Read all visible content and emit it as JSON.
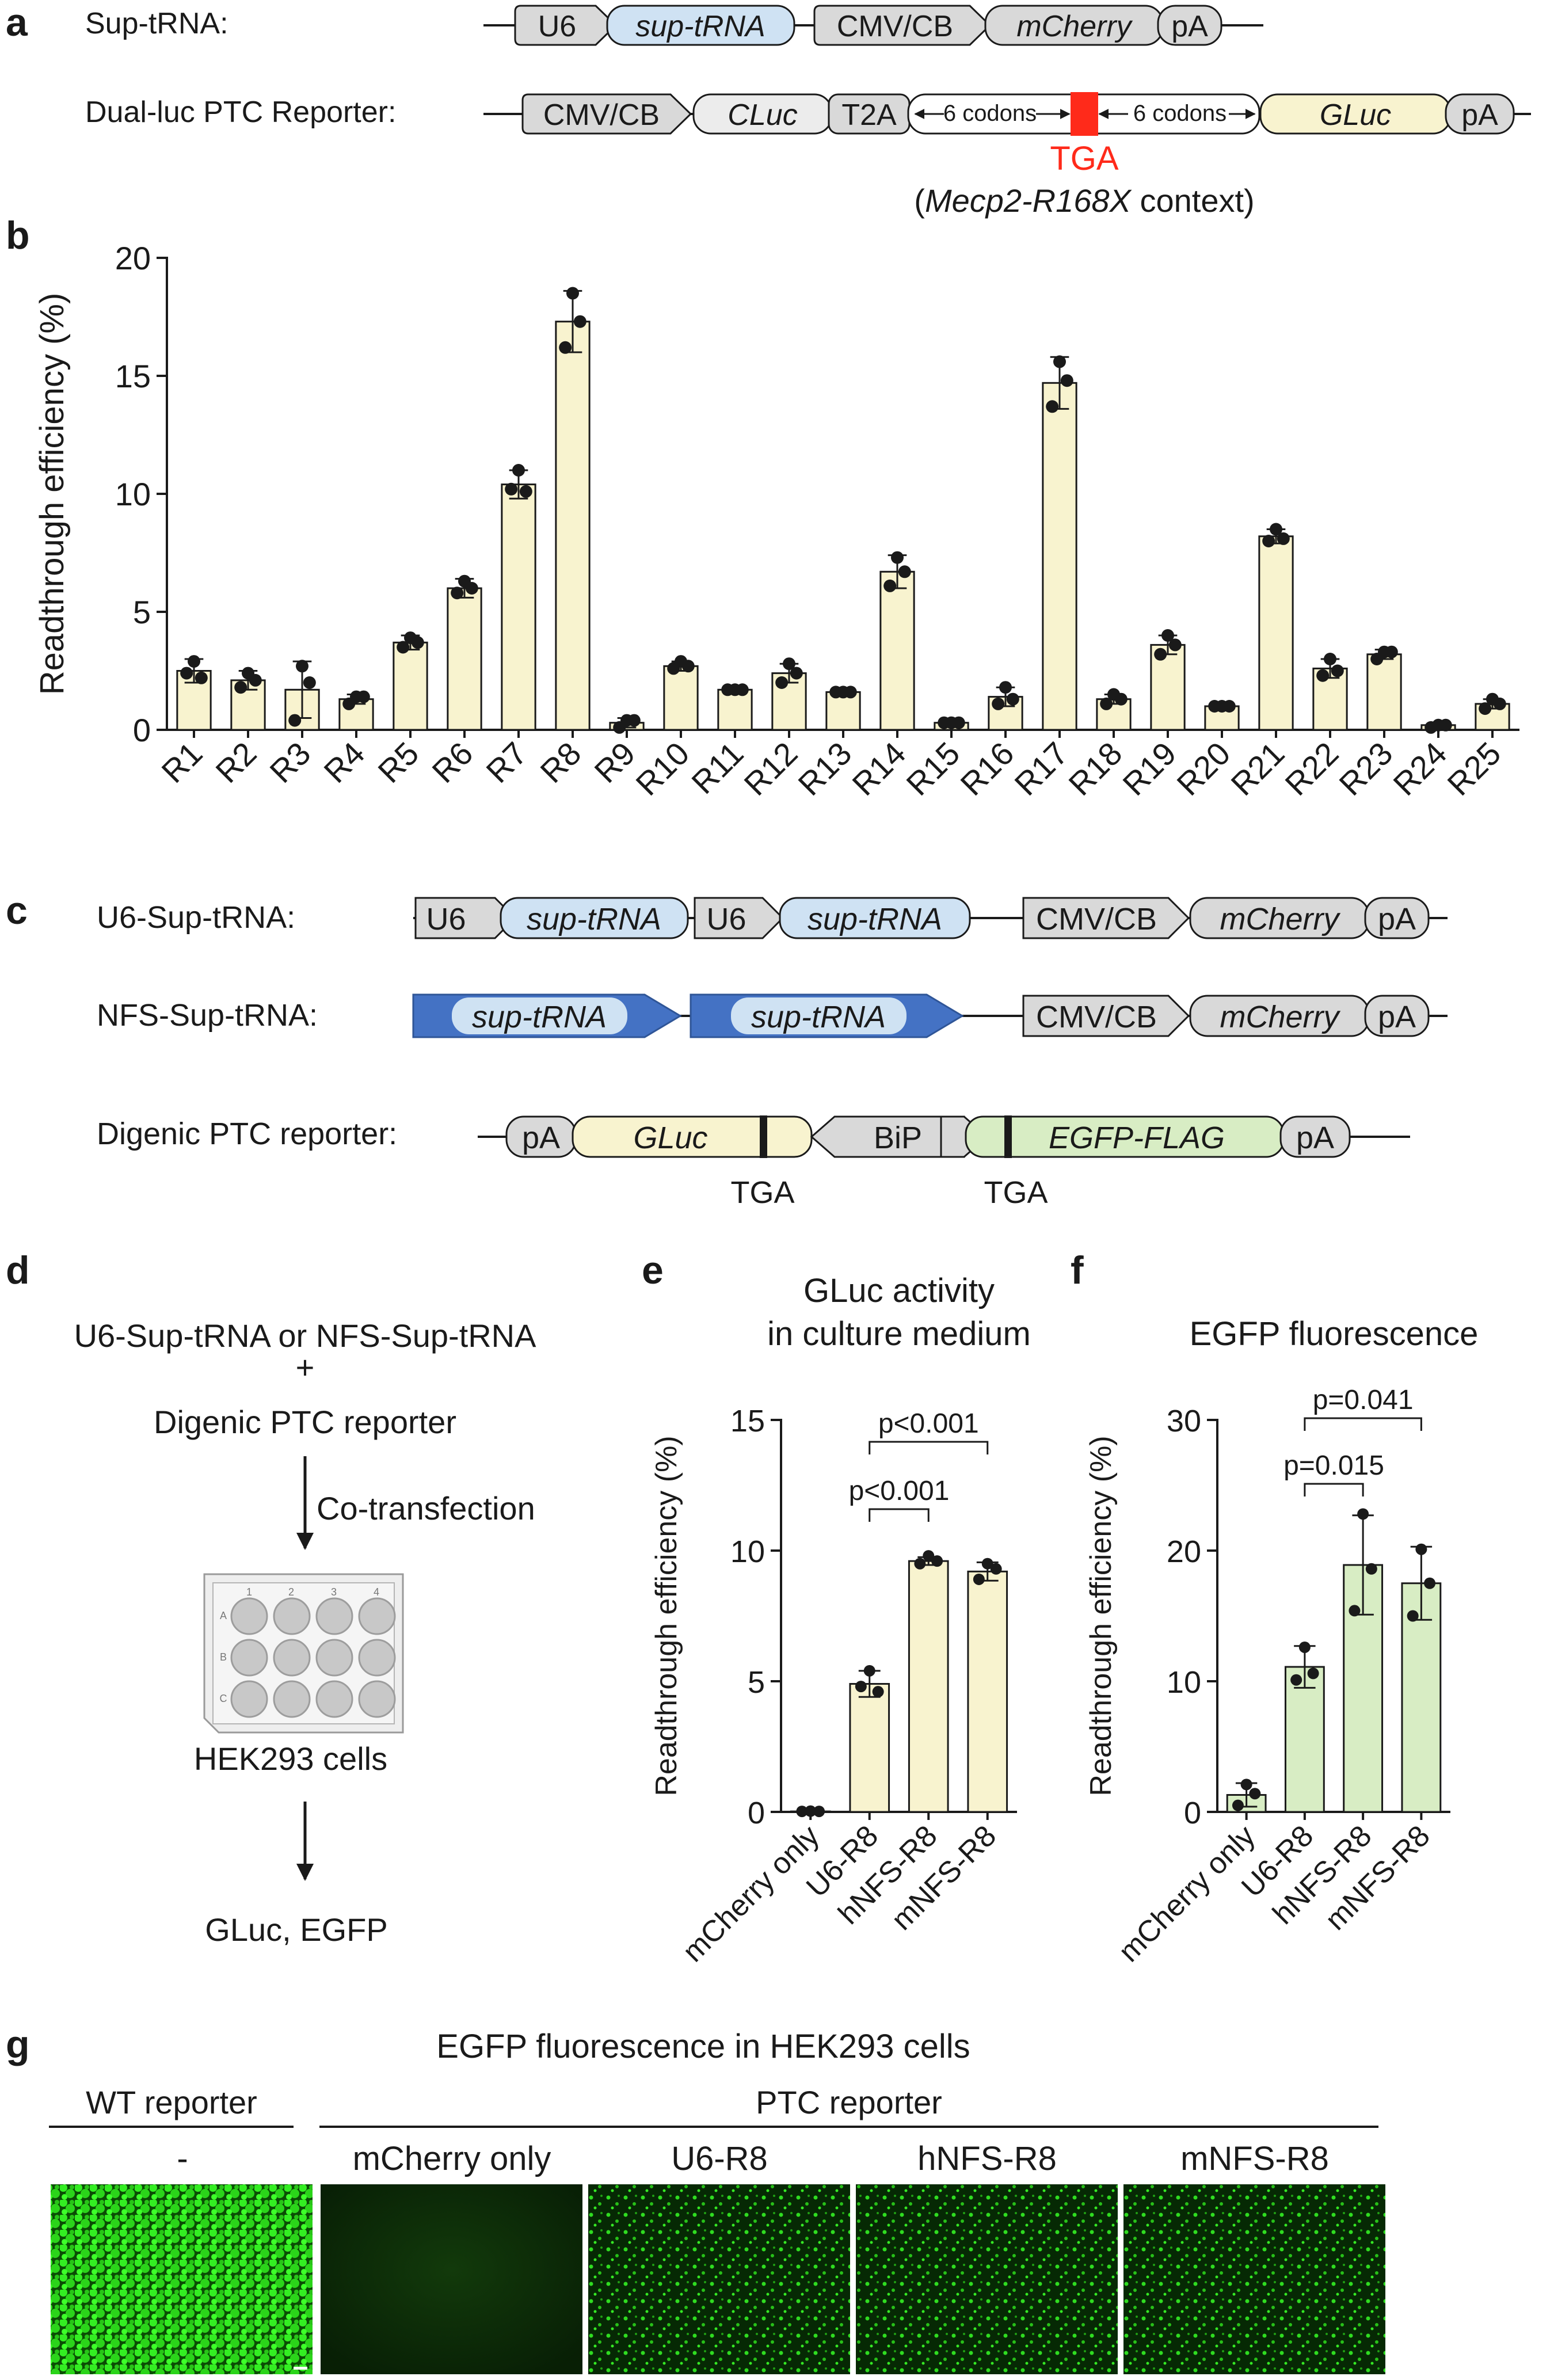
{
  "panel_letters": {
    "a": "a",
    "b": "b",
    "c": "c",
    "d": "d",
    "e": "e",
    "f": "f",
    "g": "g"
  },
  "panel_a": {
    "sup_trna_label": "Sup-tRNA:",
    "reporter_label": "Dual-luc PTC Reporter:",
    "sup_elements": [
      "U6",
      "sup-tRNA",
      "CMV/CB",
      "mCherry",
      "pA"
    ],
    "rep_elements": [
      "CMV/CB",
      "CLuc",
      "T2A",
      "6 codons",
      "6 codons",
      "GLuc",
      "pA"
    ],
    "stop_codon": "TGA",
    "context_open": "(",
    "context_gene": "Mecp2-R168X",
    "context_close": " context)"
  },
  "panel_c": {
    "u6_label": "U6-Sup-tRNA:",
    "nfs_label": "NFS-Sup-tRNA:",
    "digenic_label": "Digenic PTC reporter:",
    "u6_elements": [
      "U6",
      "sup-tRNA",
      "U6",
      "sup-tRNA",
      "CMV/CB",
      "mCherry",
      "pA"
    ],
    "nfs_elements": [
      "sup-tRNA",
      "sup-tRNA",
      "CMV/CB",
      "mCherry",
      "pA"
    ],
    "digenic_elements": [
      "pA",
      "GLuc",
      "BiP",
      "EGFP-FLAG",
      "pA"
    ],
    "tga1": "TGA",
    "tga2": "TGA"
  },
  "panel_d": {
    "line1": "U6-Sup-tRNA or NFS-Sup-tRNA",
    "plus": "+",
    "line2": "Digenic PTC reporter",
    "step": "Co-transfection",
    "plate_cols": [
      "1",
      "2",
      "3",
      "4"
    ],
    "plate_rows": [
      "A",
      "B",
      "C"
    ],
    "cells": "HEK293 cells",
    "readout": "GLuc, EGFP"
  },
  "chart_data": [
    {
      "id": "b",
      "type": "bar",
      "title": "",
      "xlabel": "",
      "ylabel": "Readthrough efficiency (%)",
      "ylim": [
        0,
        20
      ],
      "yticks": [
        "0",
        "5",
        "10",
        "15",
        "20"
      ],
      "categories": [
        "R1",
        "R2",
        "R3",
        "R4",
        "R5",
        "R6",
        "R7",
        "R8",
        "R9",
        "R10",
        "R11",
        "R12",
        "R13",
        "R14",
        "R15",
        "R16",
        "R17",
        "R18",
        "R19",
        "R20",
        "R21",
        "R22",
        "R23",
        "R24",
        "R25"
      ],
      "values": [
        2.5,
        2.1,
        1.7,
        1.3,
        3.7,
        6.0,
        10.4,
        17.3,
        0.3,
        2.7,
        1.7,
        2.4,
        1.6,
        6.7,
        0.3,
        1.4,
        14.7,
        1.3,
        3.6,
        1.0,
        8.2,
        2.6,
        3.2,
        0.2,
        1.1
      ],
      "sd": [
        0.5,
        0.4,
        1.2,
        0.2,
        0.3,
        0.4,
        0.6,
        1.3,
        0.2,
        0.2,
        0.1,
        0.4,
        0.1,
        0.7,
        0.1,
        0.4,
        1.1,
        0.2,
        0.4,
        0.1,
        0.3,
        0.4,
        0.2,
        0.1,
        0.2
      ],
      "points": [
        [
          2.9,
          2.4,
          2.2
        ],
        [
          2.4,
          1.8,
          2.1
        ],
        [
          2.7,
          0.4,
          2.0
        ],
        [
          1.4,
          1.1,
          1.4
        ],
        [
          3.9,
          3.5,
          3.7
        ],
        [
          6.3,
          5.8,
          6.0
        ],
        [
          11.0,
          10.2,
          10.1
        ],
        [
          18.5,
          16.2,
          17.3
        ],
        [
          0.4,
          0.1,
          0.4
        ],
        [
          2.9,
          2.6,
          2.7
        ],
        [
          1.7,
          1.7,
          1.7
        ],
        [
          2.8,
          2.0,
          2.4
        ],
        [
          1.6,
          1.6,
          1.6
        ],
        [
          7.3,
          6.1,
          6.7
        ],
        [
          0.3,
          0.3,
          0.3
        ],
        [
          1.8,
          1.1,
          1.3
        ],
        [
          15.6,
          13.7,
          14.8
        ],
        [
          1.5,
          1.1,
          1.3
        ],
        [
          4.0,
          3.2,
          3.6
        ],
        [
          1.0,
          1.0,
          1.0
        ],
        [
          8.5,
          8.0,
          8.1
        ],
        [
          3.0,
          2.3,
          2.5
        ],
        [
          3.3,
          3.0,
          3.3
        ],
        [
          0.2,
          0.1,
          0.2
        ],
        [
          1.3,
          0.9,
          1.1
        ]
      ],
      "bar_color": "#f8f3cf"
    },
    {
      "id": "e",
      "type": "bar",
      "title": "GLuc activity in culture medium",
      "title_lines": [
        "GLuc activity",
        "in culture medium"
      ],
      "ylabel": "Readthrough efficiency (%)",
      "ylim": [
        0,
        15
      ],
      "yticks": [
        "0",
        "5",
        "10",
        "15"
      ],
      "categories": [
        "mCherry only",
        "U6-R8",
        "hNFS-R8",
        "mNFS-R8"
      ],
      "values": [
        0.02,
        4.9,
        9.6,
        9.2
      ],
      "sd": [
        0,
        0.5,
        0.15,
        0.35
      ],
      "points": [
        [
          0.03,
          0.02,
          0.02
        ],
        [
          5.4,
          4.8,
          4.6
        ],
        [
          9.8,
          9.5,
          9.6
        ],
        [
          9.5,
          8.9,
          9.3
        ]
      ],
      "annotations": [
        "p<0.001",
        "p<0.001"
      ],
      "bar_color": "#f8f3cf"
    },
    {
      "id": "f",
      "type": "bar",
      "title": "EGFP fluorescence",
      "ylabel": "Readthrough efficiency (%)",
      "ylim": [
        0,
        30
      ],
      "yticks": [
        "0",
        "10",
        "20",
        "30"
      ],
      "categories": [
        "mCherry only",
        "U6-R8",
        "hNFS-R8",
        "mNFS-R8"
      ],
      "values": [
        1.3,
        11.1,
        18.9,
        17.5
      ],
      "sd": [
        0.9,
        1.6,
        3.8,
        2.8
      ],
      "points": [
        [
          2.1,
          0.5,
          1.4
        ],
        [
          12.6,
          10.1,
          10.6
        ],
        [
          22.8,
          15.4,
          18.6
        ],
        [
          20.1,
          15.0,
          17.5
        ]
      ],
      "annotations": [
        "p=0.015",
        "p=0.041"
      ],
      "bar_color": "#d8edc4"
    }
  ],
  "panel_g": {
    "title": "EGFP fluorescence in HEK293 cells",
    "wt_group": "WT reporter",
    "ptc_group": "PTC reporter",
    "images": [
      "-",
      "mCherry only",
      "U6-R8",
      "hNFS-R8",
      "mNFS-R8"
    ]
  },
  "colors": {
    "grey_box": "#d9d9d9",
    "blue_box": "#cfe2f3",
    "yellow_box": "#f8f3cf",
    "green_box": "#d8edc4",
    "nfs_arrow": "#4472c4",
    "stop_red": "#ff2a1a"
  }
}
